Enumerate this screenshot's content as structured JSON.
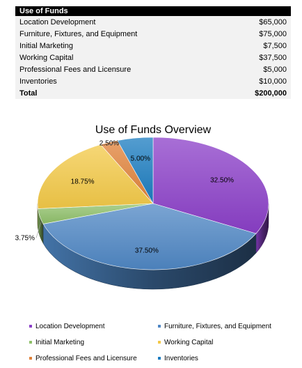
{
  "table": {
    "header": "Use of Funds",
    "rows": [
      {
        "label": "Location Development",
        "amount": "$65,000"
      },
      {
        "label": "Furniture, Fixtures, and Equipment",
        "amount": "$75,000"
      },
      {
        "label": "Initial Marketing",
        "amount": "$7,500"
      },
      {
        "label": "Working Capital",
        "amount": "$37,500"
      },
      {
        "label": "Professional Fees and Licensure",
        "amount": "$5,000"
      },
      {
        "label": "Inventories",
        "amount": "$10,000"
      }
    ],
    "total": {
      "label": "Total",
      "amount": "$200,000"
    }
  },
  "chart_data": {
    "type": "pie",
    "style": "3d-pie",
    "title": "Use of Funds Overview",
    "slices": [
      {
        "name": "Location Development",
        "value": 32.5,
        "label": "32.50%",
        "color": "#8b3fc8"
      },
      {
        "name": "Furniture, Fixtures, and Equipment",
        "value": 37.5,
        "label": "37.50%",
        "color": "#4f87c4"
      },
      {
        "name": "Initial Marketing",
        "value": 3.75,
        "label": "3.75%",
        "color": "#8fc06a"
      },
      {
        "name": "Working Capital",
        "value": 18.75,
        "label": "18.75%",
        "color": "#f3c948"
      },
      {
        "name": "Professional Fees and Licensure",
        "value": 2.5,
        "label": "2.50%",
        "color": "#e0823a"
      },
      {
        "name": "Inventories",
        "value": 5.0,
        "label": "5.00%",
        "color": "#1b7cc0"
      }
    ],
    "legend_position": "bottom"
  }
}
